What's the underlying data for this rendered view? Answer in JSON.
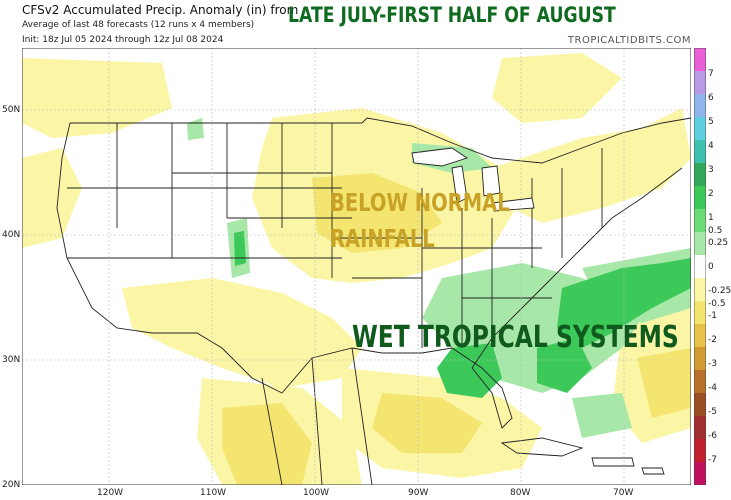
{
  "header": {
    "title": "CFSv2 Accumulated Precip. Anomaly (in) from",
    "subtitle": "Average of last 48 forecasts (12 runs x 4 members)",
    "init": "Init: 18z Jul 05 2024 through 12z Jul 08 2024",
    "brand": "TROPICALTIDBITS.COM"
  },
  "overlay": {
    "headline": "LATE JULY-FIRST HALF OF AUGUST",
    "below_line1": "BELOW NORMAL",
    "below_line2": "RAINFALL",
    "wet": "WET TROPICAL SYSTEMS"
  },
  "map": {
    "lat_labels": [
      "50N",
      "40N",
      "30N",
      "20N"
    ],
    "lon_labels": [
      "120W",
      "110W",
      "100W",
      "90W",
      "80W",
      "70W"
    ],
    "colors": {
      "wet_strong": "#3cc95a",
      "wet_light": "#a7e8a9",
      "dry_light": "#fbf5a6",
      "dry_medium": "#f4e570",
      "border": "#222222"
    }
  },
  "colorbar": {
    "labels": [
      "7",
      "6",
      "5",
      "4",
      "3",
      "2",
      "1",
      "0.5",
      "0.25",
      "0",
      "-0.25",
      "-0.5",
      "-1",
      "-2",
      "-3",
      "-4",
      "-5",
      "-6",
      "-7"
    ]
  }
}
